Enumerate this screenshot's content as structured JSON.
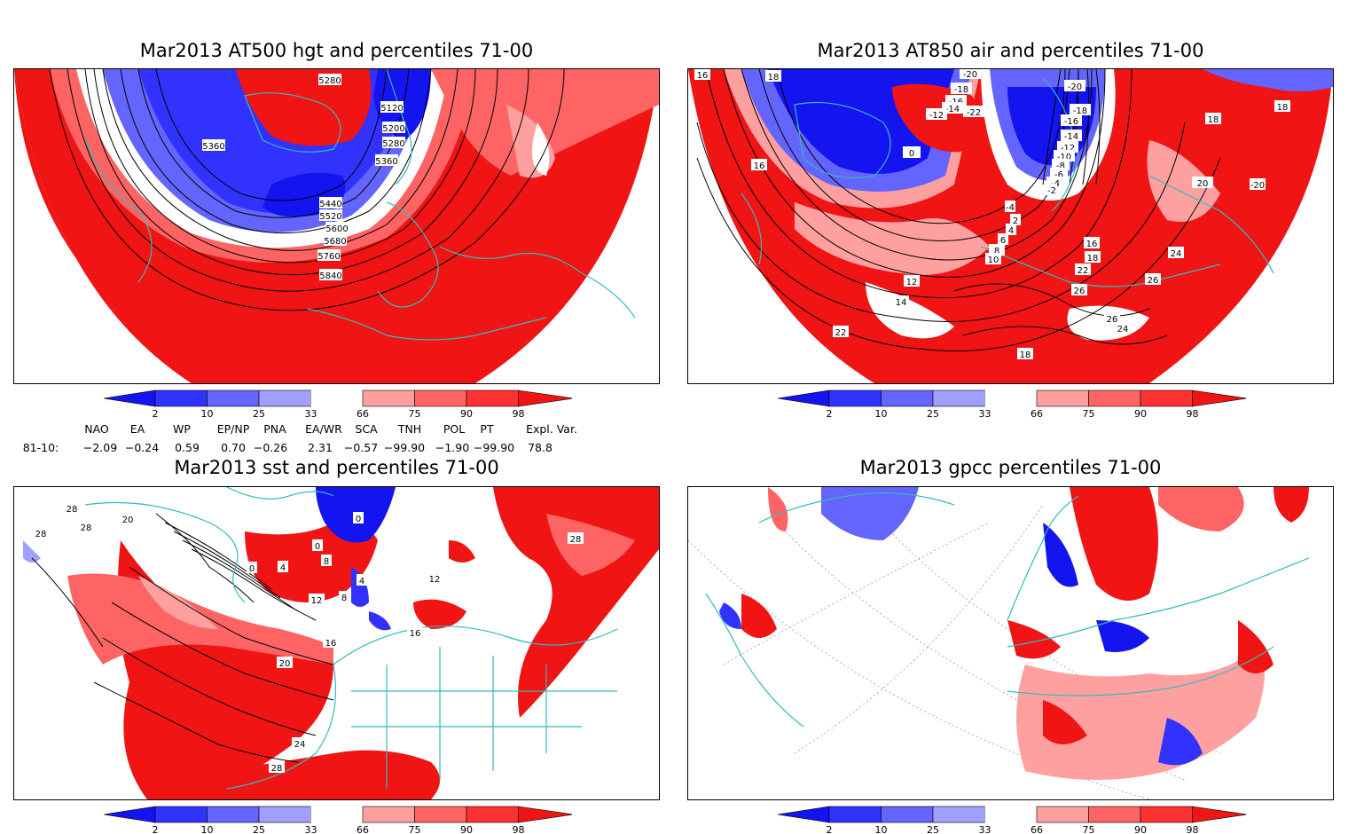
{
  "panels": [
    {
      "title": "Mar2013 AT500 hgt and percentiles 71-00",
      "contour_labels": [
        "5280",
        "5120",
        "5200",
        "5280",
        "5360",
        "5360",
        "5440",
        "5520",
        "5600",
        "5680",
        "5760",
        "5840"
      ]
    },
    {
      "title": "Mar2013 AT850 air and percentiles 71-00",
      "contour_labels": [
        "16",
        "18",
        "-20",
        "-18",
        "-16",
        "-14",
        "-12",
        "-22",
        "-20",
        "-18",
        "-16",
        "-14",
        "-12",
        "-10",
        "-8",
        "-6",
        "-4",
        "-2",
        "0",
        "-4",
        "2",
        "4",
        "6",
        "8",
        "10",
        "12",
        "14",
        "16",
        "16",
        "18",
        "18",
        "20",
        "-20",
        "18",
        "22",
        "24",
        "26",
        "26",
        "26",
        "24",
        "22",
        "18",
        "20"
      ]
    },
    {
      "title": "Mar2013 sst and percentiles 71-00",
      "contour_labels": [
        "28",
        "28",
        "28",
        "20",
        "0",
        "0",
        "0",
        "4",
        "8",
        "12",
        "16",
        "20",
        "24",
        "28",
        "4",
        "8",
        "12",
        "16",
        "28"
      ]
    },
    {
      "title": "Mar2013 gpcc percentiles 71-00",
      "contour_labels": []
    }
  ],
  "colorbar": {
    "ticks": [
      "2",
      "10",
      "25",
      "33",
      "66",
      "75",
      "90",
      "98"
    ],
    "colors": [
      "#1414f0",
      "#3232ff",
      "#6464ff",
      "#a0a0ff",
      "#ffffff",
      "#ffa0a0",
      "#ff6464",
      "#ff3232",
      "#f01414"
    ]
  },
  "indices": {
    "headers": [
      "NAO",
      "EA",
      "WP",
      "EP/NP",
      "PNA",
      "EA/WR",
      "SCA",
      "TNH",
      "POL",
      "PT",
      "Expl. Var."
    ],
    "row_label": "81-10:",
    "values": [
      "−2.09",
      "−0.24",
      "0.59",
      "0.70",
      "−0.26",
      "2.31",
      "−0.57",
      "−99.90",
      "−1.90",
      "−99.90",
      "78.8"
    ]
  }
}
